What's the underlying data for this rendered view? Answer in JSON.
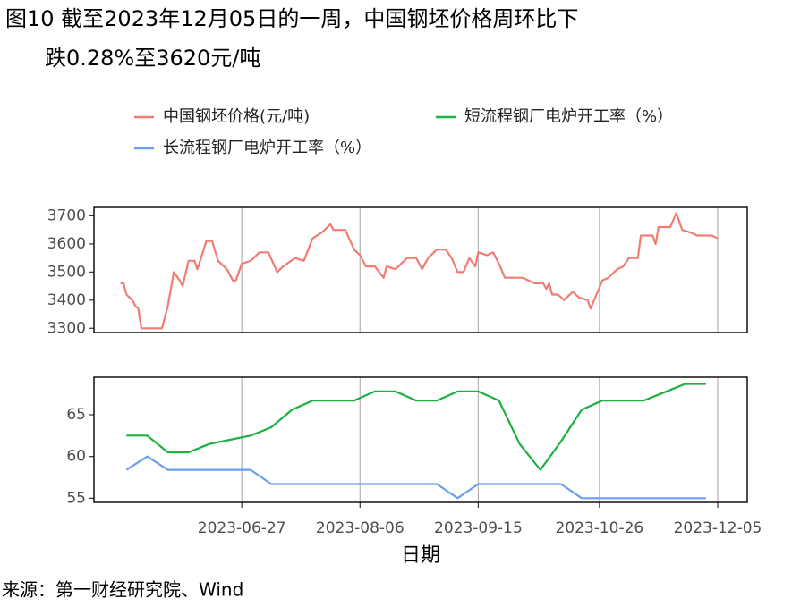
{
  "title_lines": [
    "图10 截至2023年12月05日的一周，中国钢坯价格周环比下",
    "跌0.28%至3620元/吨"
  ],
  "source": "来源：第一财经研究院、Wind",
  "chart_data": [
    {
      "type": "line",
      "x": [
        "2023-05-17",
        "2023-05-18",
        "2023-05-19",
        "2023-05-21",
        "2023-05-22",
        "2023-05-23",
        "2023-05-24",
        "2023-05-31",
        "2023-06-02",
        "2023-06-04",
        "2023-06-06",
        "2023-06-07",
        "2023-06-09",
        "2023-06-11",
        "2023-06-12",
        "2023-06-15",
        "2023-06-17",
        "2023-06-19",
        "2023-06-22",
        "2023-06-24",
        "2023-06-25",
        "2023-06-27",
        "2023-06-30",
        "2023-07-03",
        "2023-07-06",
        "2023-07-09",
        "2023-07-11",
        "2023-07-15",
        "2023-07-18",
        "2023-07-21",
        "2023-07-24",
        "2023-07-27",
        "2023-07-28",
        "2023-08-01",
        "2023-08-04",
        "2023-08-06",
        "2023-08-08",
        "2023-08-11",
        "2023-08-14",
        "2023-08-15",
        "2023-08-18",
        "2023-08-22",
        "2023-08-25",
        "2023-08-27",
        "2023-08-29",
        "2023-09-01",
        "2023-09-04",
        "2023-09-06",
        "2023-09-08",
        "2023-09-10",
        "2023-09-12",
        "2023-09-14",
        "2023-09-15",
        "2023-09-18",
        "2023-09-20",
        "2023-09-22",
        "2023-09-24",
        "2023-09-30",
        "2023-10-04",
        "2023-10-07",
        "2023-10-08",
        "2023-10-09",
        "2023-10-10",
        "2023-10-12",
        "2023-10-14",
        "2023-10-17",
        "2023-10-19",
        "2023-10-22",
        "2023-10-23",
        "2023-10-25",
        "2023-10-27",
        "2023-10-29",
        "2023-11-01",
        "2023-11-03",
        "2023-11-05",
        "2023-11-08",
        "2023-11-09",
        "2023-11-13",
        "2023-11-14",
        "2023-11-15",
        "2023-11-19",
        "2023-11-21",
        "2023-11-23",
        "2023-11-26",
        "2023-11-28",
        "2023-12-03",
        "2023-12-05"
      ],
      "series": [
        {
          "name": "中国钢坯价格(元/吨)",
          "color": "#f07c74",
          "values": [
            3460,
            3460,
            3420,
            3400,
            3380,
            3370,
            3300,
            3300,
            3380,
            3500,
            3470,
            3450,
            3540,
            3540,
            3510,
            3610,
            3610,
            3540,
            3510,
            3470,
            3470,
            3530,
            3540,
            3570,
            3570,
            3500,
            3520,
            3550,
            3540,
            3620,
            3640,
            3670,
            3650,
            3650,
            3580,
            3560,
            3520,
            3520,
            3480,
            3520,
            3510,
            3550,
            3550,
            3510,
            3550,
            3580,
            3580,
            3550,
            3500,
            3500,
            3550,
            3520,
            3570,
            3560,
            3570,
            3530,
            3480,
            3480,
            3460,
            3460,
            3440,
            3460,
            3420,
            3420,
            3400,
            3430,
            3410,
            3400,
            3370,
            3420,
            3470,
            3480,
            3510,
            3520,
            3550,
            3550,
            3630,
            3630,
            3600,
            3660,
            3660,
            3710,
            3650,
            3640,
            3630,
            3630,
            3620
          ]
        }
      ],
      "xlim": [
        "2023-05-08",
        "2023-12-15"
      ],
      "xticks": [
        "2023-06-27",
        "2023-08-06",
        "2023-09-15",
        "2023-10-26",
        "2023-12-05"
      ],
      "ylim": [
        3285,
        3730
      ],
      "yticks": [
        3300,
        3400,
        3500,
        3600,
        3700
      ],
      "grid": true
    },
    {
      "type": "line",
      "x": [
        "2023-05-19",
        "2023-05-26",
        "2023-06-02",
        "2023-06-09",
        "2023-06-16",
        "2023-06-23",
        "2023-06-30",
        "2023-07-07",
        "2023-07-14",
        "2023-07-21",
        "2023-07-28",
        "2023-08-04",
        "2023-08-11",
        "2023-08-18",
        "2023-08-25",
        "2023-09-01",
        "2023-09-08",
        "2023-09-15",
        "2023-09-22",
        "2023-09-29",
        "2023-10-06",
        "2023-10-13",
        "2023-10-20",
        "2023-10-27",
        "2023-11-03",
        "2023-11-10",
        "2023-11-17",
        "2023-11-24",
        "2023-12-01"
      ],
      "series": [
        {
          "name": "短流程钢厂电炉开工率（%）",
          "color": "#1db043",
          "values": [
            62.5,
            62.5,
            60.5,
            60.5,
            61.5,
            62,
            62.5,
            63.5,
            65.6,
            66.7,
            66.7,
            66.7,
            67.8,
            67.8,
            66.7,
            66.7,
            67.8,
            67.8,
            66.7,
            61.5,
            58.4,
            61.8,
            65.6,
            66.7,
            66.7,
            66.7,
            67.7,
            68.7,
            68.7
          ]
        },
        {
          "name": "长流程钢厂电炉开工率（%）",
          "color": "#6a9ff0",
          "values": [
            58.4,
            60,
            58.4,
            58.4,
            58.4,
            58.4,
            58.4,
            56.7,
            56.7,
            56.7,
            56.7,
            56.7,
            56.7,
            56.7,
            56.7,
            56.7,
            55,
            56.7,
            56.7,
            56.7,
            56.7,
            56.7,
            55,
            55,
            55,
            55,
            55,
            55,
            55
          ]
        }
      ],
      "xlim": [
        "2023-05-08",
        "2023-12-15"
      ],
      "xticks": [
        "2023-06-27",
        "2023-08-06",
        "2023-09-15",
        "2023-10-26",
        "2023-12-05"
      ],
      "xlabel": "日期",
      "ylim": [
        54.5,
        69.5
      ],
      "yticks": [
        55,
        60,
        65
      ],
      "grid": true
    }
  ]
}
